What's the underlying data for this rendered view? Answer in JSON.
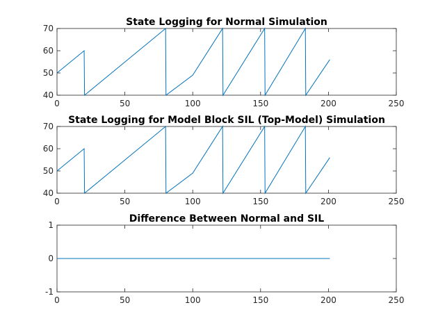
{
  "colors": {
    "series": "#0072BD",
    "axis": "#262626"
  },
  "chart_data": [
    {
      "type": "line",
      "title": "State Logging for Normal Simulation",
      "xlim": [
        0,
        250
      ],
      "ylim": [
        40,
        70
      ],
      "xticks": [
        0,
        50,
        100,
        150,
        200,
        250
      ],
      "yticks": [
        40,
        50,
        60,
        70
      ],
      "grid": false,
      "series": [
        {
          "x": [
            0,
            20,
            20.3,
            80,
            80.3,
            100,
            122,
            122.3,
            153,
            153.3,
            183,
            183.3,
            201
          ],
          "y": [
            50,
            60,
            40,
            70,
            40,
            49,
            70,
            40,
            70,
            40,
            70,
            40,
            56
          ]
        }
      ]
    },
    {
      "type": "line",
      "title": "State Logging for Model Block SIL (Top-Model) Simulation",
      "xlim": [
        0,
        250
      ],
      "ylim": [
        40,
        70
      ],
      "xticks": [
        0,
        50,
        100,
        150,
        200,
        250
      ],
      "yticks": [
        40,
        50,
        60,
        70
      ],
      "grid": false,
      "series": [
        {
          "x": [
            0,
            20,
            20.3,
            80,
            80.3,
            100,
            122,
            122.3,
            153,
            153.3,
            183,
            183.3,
            201
          ],
          "y": [
            50,
            60,
            40,
            70,
            40,
            49,
            70,
            40,
            70,
            40,
            70,
            40,
            56
          ]
        }
      ]
    },
    {
      "type": "line",
      "title": "Difference Between Normal and SIL",
      "xlim": [
        0,
        250
      ],
      "ylim": [
        -1,
        1
      ],
      "xticks": [
        0,
        50,
        100,
        150,
        200,
        250
      ],
      "yticks": [
        -1,
        0,
        1
      ],
      "grid": false,
      "series": [
        {
          "x": [
            0,
            201
          ],
          "y": [
            0,
            0
          ]
        }
      ]
    }
  ]
}
